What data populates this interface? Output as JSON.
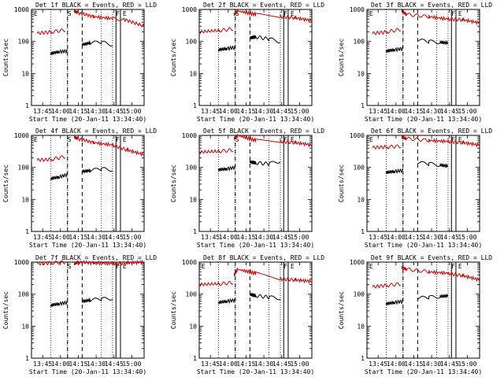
{
  "chart_data": [
    {
      "type": "line",
      "title": "Det 1f BLACK = Events, RED = LLD",
      "xlabel": "Start Time (20-Jan-11 13:34:40)",
      "ylabel": "Counts/sec",
      "yscale": "log",
      "ylim": [
        1,
        1000
      ],
      "ytick_labels": [
        "1",
        "10",
        "100",
        "1000"
      ],
      "x_tick_labels": [
        "13:45",
        "14:00",
        "14:15",
        "14:30",
        "14:45",
        "15:00"
      ],
      "markers": [
        "E",
        "S",
        "F",
        "E"
      ],
      "series": [
        {
          "name": "Events",
          "color": "#000000",
          "segments": [
            {
              "x": [
                0.17,
                0.24,
                0.32
              ],
              "y": [
                42,
                48,
                50
              ]
            },
            {
              "x": [
                0.45,
                0.52,
                0.62,
                0.72
              ],
              "y": [
                80,
                90,
                95,
                80
              ]
            }
          ]
        },
        {
          "name": "LLD",
          "color": "#d00000",
          "segments": [
            {
              "x": [
                0.05,
                0.18,
                0.3
              ],
              "y": [
                180,
                200,
                230
              ]
            },
            {
              "x": [
                0.38,
                0.41,
                0.55,
                0.72,
                0.82,
                1.0
              ],
              "y": [
                900,
                800,
                600,
                520,
                500,
                300
              ]
            }
          ]
        }
      ]
    },
    {
      "type": "line",
      "title": "Det 2f BLACK = Events, RED = LLD",
      "xlabel": "Start Time (20-Jan-11 13:34:40)",
      "ylabel": "Counts/sec",
      "yscale": "log",
      "ylim": [
        1,
        1000
      ],
      "ytick_labels": [
        "1",
        "10",
        "100",
        "1000"
      ],
      "x_tick_labels": [
        "13:45",
        "14:00",
        "14:15",
        "14:30",
        "14:45",
        "15:00"
      ],
      "markers": [
        "S",
        "F",
        "E"
      ],
      "series": [
        {
          "name": "Events",
          "color": "#000000",
          "segments": [
            {
              "x": [
                0.17,
                0.24,
                0.32
              ],
              "y": [
                55,
                60,
                65
              ]
            },
            {
              "x": [
                0.45,
                0.5,
                0.62,
                0.72
              ],
              "y": [
                130,
                140,
                120,
                100
              ]
            }
          ]
        },
        {
          "name": "LLD",
          "color": "#d00000",
          "segments": [
            {
              "x": [
                0.0,
                0.18,
                0.3
              ],
              "y": [
                200,
                220,
                250
              ]
            },
            {
              "x": [
                0.31,
                0.34,
                0.5,
                0.72,
                0.85,
                1.0
              ],
              "y": [
                700,
                900,
                700,
                600,
                550,
                450
              ]
            }
          ]
        }
      ]
    },
    {
      "type": "line",
      "title": "Det 3f BLACK = Events, RED = LLD",
      "xlabel": "Start Time (20-Jan-11 13:34:40)",
      "ylabel": "Counts/sec",
      "yscale": "log",
      "ylim": [
        1,
        1000
      ],
      "ytick_labels": [
        "1",
        "10",
        "100",
        "1000"
      ],
      "x_tick_labels": [
        "13:45",
        "14:00",
        "14:15",
        "14:30",
        "14:45",
        "15:00"
      ],
      "markers": [
        "E",
        "F",
        "E"
      ],
      "series": [
        {
          "name": "Events",
          "color": "#000000",
          "segments": [
            {
              "x": [
                0.17,
                0.24,
                0.32
              ],
              "y": [
                50,
                55,
                60
              ]
            },
            {
              "x": [
                0.45,
                0.55,
                0.65,
                0.72
              ],
              "y": [
                110,
                100,
                95,
                90
              ]
            }
          ]
        },
        {
          "name": "LLD",
          "color": "#d00000",
          "segments": [
            {
              "x": [
                0.05,
                0.18,
                0.3
              ],
              "y": [
                180,
                200,
                240
              ]
            },
            {
              "x": [
                0.31,
                0.35,
                0.55,
                0.72,
                0.85,
                1.0
              ],
              "y": [
                900,
                700,
                600,
                500,
                480,
                380
              ]
            }
          ]
        }
      ]
    },
    {
      "type": "line",
      "title": "Det 4f BLACK = Events, RED = LLD",
      "xlabel": "Start Time (20-Jan-11 13:34:40)",
      "ylabel": "Counts/sec",
      "yscale": "log",
      "ylim": [
        1,
        1000
      ],
      "ytick_labels": [
        "1",
        "10",
        "100",
        "1000"
      ],
      "x_tick_labels": [
        "13:45",
        "14:00",
        "14:15",
        "14:30",
        "14:45",
        "15:00"
      ],
      "markers": [
        "E",
        "S",
        "F",
        "E"
      ],
      "series": [
        {
          "name": "Events",
          "color": "#000000",
          "segments": [
            {
              "x": [
                0.17,
                0.24,
                0.32
              ],
              "y": [
                45,
                50,
                60
              ]
            },
            {
              "x": [
                0.45,
                0.52,
                0.62,
                0.72
              ],
              "y": [
                75,
                80,
                90,
                85
              ]
            }
          ]
        },
        {
          "name": "LLD",
          "color": "#d00000",
          "segments": [
            {
              "x": [
                0.05,
                0.18,
                0.3
              ],
              "y": [
                170,
                180,
                220
              ]
            },
            {
              "x": [
                0.38,
                0.41,
                0.55,
                0.72,
                0.85,
                1.0
              ],
              "y": [
                900,
                800,
                600,
                500,
                350,
                250
              ]
            }
          ]
        }
      ]
    },
    {
      "type": "line",
      "title": "Det 5f BLACK = Events, RED = LLD",
      "xlabel": "Start Time (20-Jan-11 13:34:40)",
      "ylabel": "Counts/sec",
      "yscale": "log",
      "ylim": [
        1,
        1000
      ],
      "ytick_labels": [
        "1",
        "10",
        "100",
        "1000"
      ],
      "x_tick_labels": [
        "13:45",
        "14:00",
        "14:15",
        "14:30",
        "14:45",
        "15:00"
      ],
      "markers": [
        "S",
        "F",
        "E"
      ],
      "series": [
        {
          "name": "Events",
          "color": "#000000",
          "segments": [
            {
              "x": [
                0.17,
                0.24,
                0.32
              ],
              "y": [
                85,
                90,
                100
              ]
            },
            {
              "x": [
                0.45,
                0.5,
                0.62,
                0.72
              ],
              "y": [
                150,
                140,
                130,
                160
              ]
            }
          ]
        },
        {
          "name": "LLD",
          "color": "#d00000",
          "segments": [
            {
              "x": [
                0.0,
                0.18,
                0.3
              ],
              "y": [
                300,
                320,
                350
              ]
            },
            {
              "x": [
                0.31,
                0.34,
                0.5,
                0.72,
                0.85,
                1.0
              ],
              "y": [
                800,
                1000,
                700,
                650,
                600,
                500
              ]
            }
          ]
        }
      ]
    },
    {
      "type": "line",
      "title": "Det 6f BLACK = Events, RED = LLD",
      "xlabel": "Start Time (20-Jan-11 13:34:40)",
      "ylabel": "Counts/sec",
      "yscale": "log",
      "ylim": [
        1,
        1000
      ],
      "ytick_labels": [
        "1",
        "10",
        "100",
        "1000"
      ],
      "x_tick_labels": [
        "13:45",
        "14:00",
        "14:15",
        "14:30",
        "14:45",
        "15:00"
      ],
      "markers": [
        "E",
        "F",
        "E"
      ],
      "series": [
        {
          "name": "Events",
          "color": "#000000",
          "segments": [
            {
              "x": [
                0.17,
                0.24,
                0.32
              ],
              "y": [
                70,
                75,
                80
              ]
            },
            {
              "x": [
                0.45,
                0.55,
                0.65,
                0.72
              ],
              "y": [
                140,
                130,
                120,
                110
              ]
            }
          ]
        },
        {
          "name": "LLD",
          "color": "#d00000",
          "segments": [
            {
              "x": [
                0.05,
                0.18,
                0.3
              ],
              "y": [
                420,
                440,
                460
              ]
            },
            {
              "x": [
                0.31,
                0.35,
                0.55,
                0.72,
                0.85,
                1.0
              ],
              "y": [
                900,
                800,
                700,
                650,
                600,
                500
              ]
            }
          ]
        }
      ]
    },
    {
      "type": "line",
      "title": "Det 7f BLACK = Events, RED = LLD",
      "xlabel": "Start Time (20-Jan-11 13:34:40)",
      "ylabel": "Counts/sec",
      "yscale": "log",
      "ylim": [
        1,
        1000
      ],
      "ytick_labels": [
        "1",
        "10",
        "100",
        "1000"
      ],
      "x_tick_labels": [
        "13:45",
        "14:00",
        "14:15",
        "14:30",
        "14:45",
        "15:00"
      ],
      "markers": [
        "S",
        "F",
        "E"
      ],
      "series": [
        {
          "name": "Events",
          "color": "#000000",
          "segments": [
            {
              "x": [
                0.17,
                0.24,
                0.32
              ],
              "y": [
                45,
                50,
                55
              ]
            },
            {
              "x": [
                0.45,
                0.52,
                0.62,
                0.72
              ],
              "y": [
                60,
                65,
                70,
                75
              ]
            }
          ]
        },
        {
          "name": "LLD",
          "color": "#d00000",
          "segments": [
            {
              "x": [
                0.05,
                0.18,
                0.3
              ],
              "y": [
                900,
                950,
                1000
              ]
            },
            {
              "x": [
                0.38,
                0.41,
                0.55,
                0.72,
                0.85,
                1.0
              ],
              "y": [
                900,
                1000,
                950,
                900,
                950,
                1000
              ]
            }
          ]
        }
      ]
    },
    {
      "type": "line",
      "title": "Det 8f BLACK = Events, RED = LLD",
      "xlabel": "Start Time (20-Jan-11 13:34:40)",
      "ylabel": "Counts/sec",
      "yscale": "log",
      "ylim": [
        1,
        1000
      ],
      "ytick_labels": [
        "1",
        "10",
        "100",
        "1000"
      ],
      "x_tick_labels": [
        "13:45",
        "14:00",
        "14:15",
        "14:30",
        "14:45",
        "15:00"
      ],
      "markers": [
        "E",
        "F",
        "E"
      ],
      "series": [
        {
          "name": "Events",
          "color": "#000000",
          "segments": [
            {
              "x": [
                0.17,
                0.24,
                0.32
              ],
              "y": [
                55,
                60,
                65
              ]
            },
            {
              "x": [
                0.45,
                0.5,
                0.62,
                0.72
              ],
              "y": [
                100,
                90,
                80,
                75
              ]
            }
          ]
        },
        {
          "name": "LLD",
          "color": "#d00000",
          "segments": [
            {
              "x": [
                0.0,
                0.18,
                0.3
              ],
              "y": [
                200,
                210,
                230
              ]
            },
            {
              "x": [
                0.31,
                0.34,
                0.5,
                0.72,
                0.85,
                1.0
              ],
              "y": [
                400,
                600,
                450,
                300,
                280,
                250
              ]
            }
          ]
        }
      ]
    },
    {
      "type": "line",
      "title": "Det 9f BLACK = Events, RED = LLD",
      "xlabel": "Start Time (20-Jan-11 13:34:40)",
      "ylabel": "Counts/sec",
      "yscale": "log",
      "ylim": [
        1,
        1000
      ],
      "ytick_labels": [
        "1",
        "10",
        "100",
        "1000"
      ],
      "x_tick_labels": [
        "13:45",
        "14:00",
        "14:15",
        "14:30",
        "14:45",
        "15:00"
      ],
      "markers": [
        "E",
        "F",
        "E"
      ],
      "series": [
        {
          "name": "Events",
          "color": "#000000",
          "segments": [
            {
              "x": [
                0.17,
                0.24,
                0.32
              ],
              "y": [
                50,
                55,
                60
              ]
            },
            {
              "x": [
                0.45,
                0.55,
                0.65,
                0.72
              ],
              "y": [
                75,
                80,
                85,
                90
              ]
            }
          ]
        },
        {
          "name": "LLD",
          "color": "#d00000",
          "segments": [
            {
              "x": [
                0.05,
                0.18,
                0.3
              ],
              "y": [
                170,
                190,
                210
              ]
            },
            {
              "x": [
                0.31,
                0.35,
                0.55,
                0.72,
                0.85,
                1.0
              ],
              "y": [
                700,
                600,
                500,
                450,
                380,
                280
              ]
            }
          ]
        }
      ]
    }
  ]
}
